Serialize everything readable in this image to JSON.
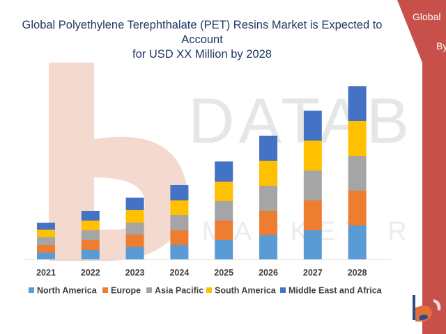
{
  "banner": {
    "line1": "Global",
    "line2": "By",
    "color": "#c8504a"
  },
  "watermark": {
    "text": "DATABRIDGE",
    "subtext": "MARKET RESEARCH",
    "color": "#f2dcd6"
  },
  "chart_data": {
    "type": "bar",
    "stacked": true,
    "title": "Global Polyethylene Terephthalate (PET) Resins Market is Expected to Account for USD XX Million by 2028",
    "title_lines": [
      "Global Polyethylene Terephthalate (PET) Resins Market is Expected to Account",
      "for USD XX Million by 2028"
    ],
    "xlabel": "",
    "ylabel": "",
    "ylim": [
      0,
      250
    ],
    "grid": false,
    "legend_position": "bottom",
    "categories": [
      "2021",
      "2022",
      "2023",
      "2024",
      "2025",
      "2026",
      "2027",
      "2028"
    ],
    "series": [
      {
        "name": "North America",
        "color": "#5b9bd5",
        "values": [
          10,
          14,
          18,
          21,
          28,
          35,
          42,
          49
        ]
      },
      {
        "name": "Europe",
        "color": "#ed7d31",
        "values": [
          11,
          14,
          18,
          21,
          28,
          35,
          43,
          50
        ]
      },
      {
        "name": "Asia Pacific",
        "color": "#a5a5a5",
        "values": [
          11,
          14,
          17,
          22,
          28,
          36,
          43,
          50
        ]
      },
      {
        "name": "South America",
        "color": "#ffc000",
        "values": [
          11,
          14,
          18,
          21,
          28,
          36,
          43,
          50
        ]
      },
      {
        "name": "Middle East and Africa",
        "color": "#4472c4",
        "values": [
          10,
          14,
          18,
          22,
          29,
          36,
          43,
          50
        ]
      }
    ]
  }
}
